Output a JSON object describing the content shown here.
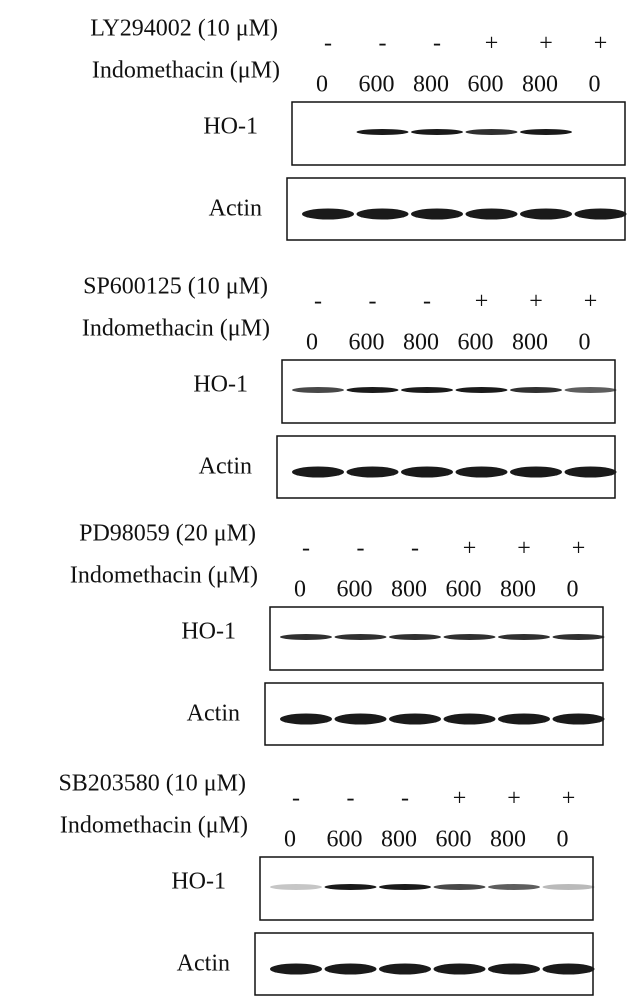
{
  "panels": [
    {
      "inhibitor": "LY294002 (10 μM)",
      "treatment": "Indomethacin (μM)",
      "signs": [
        "-",
        "-",
        "-",
        "+",
        "+",
        "+"
      ],
      "doses": [
        "0",
        "600",
        "800",
        "600",
        "800",
        "0"
      ],
      "blots": [
        "HO-1",
        "Actin"
      ]
    },
    {
      "inhibitor": "SP600125 (10 μM)",
      "treatment": "Indomethacin (μM)",
      "signs": [
        "-",
        "-",
        "-",
        "+",
        "+",
        "+"
      ],
      "doses": [
        "0",
        "600",
        "800",
        "600",
        "800",
        "0"
      ],
      "blots": [
        "HO-1",
        "Actin"
      ]
    },
    {
      "inhibitor": "PD98059 (20 μM)",
      "treatment": "Indomethacin (μM)",
      "signs": [
        "-",
        "-",
        "-",
        "+",
        "+",
        "+"
      ],
      "doses": [
        "0",
        "600",
        "800",
        "600",
        "800",
        "0"
      ],
      "blots": [
        "HO-1",
        "Actin"
      ]
    },
    {
      "inhibitor": "SB203580 (10 μM)",
      "treatment": "Indomethacin (μM)",
      "signs": [
        "-",
        "-",
        "-",
        "+",
        "+",
        "+"
      ],
      "doses": [
        "0",
        "600",
        "800",
        "600",
        "800",
        "0"
      ],
      "blots": [
        "HO-1",
        "Actin"
      ]
    }
  ]
}
